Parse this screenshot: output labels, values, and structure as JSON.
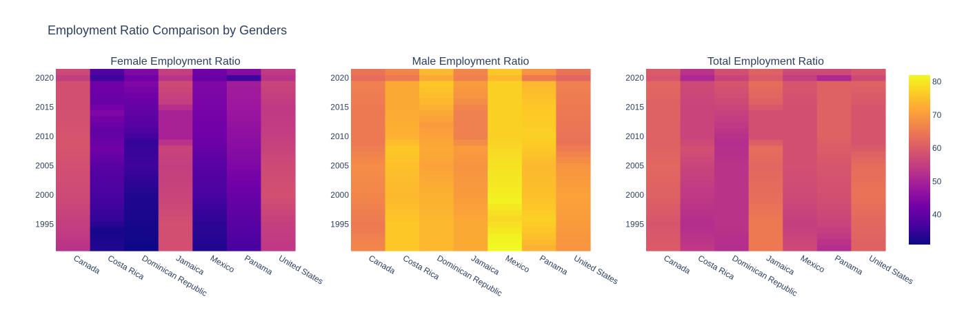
{
  "figure": {
    "title": "Employment Ratio Comparison by Genders"
  },
  "colorscale": {
    "name": "plasma",
    "stops": [
      "#0d0887",
      "#46039f",
      "#7201a8",
      "#9c179e",
      "#bd3786",
      "#d8576b",
      "#ed7953",
      "#fb9f3a",
      "#fdca26",
      "#f0f921"
    ],
    "zmin": 31,
    "zmax": 82,
    "ticks": [
      40,
      50,
      60,
      70,
      80
    ]
  },
  "chart_data": [
    {
      "type": "heatmap",
      "title": "Female Employment Ratio",
      "categories": [
        "Canada",
        "Costa Rica",
        "Dominican Republic",
        "Jamaica",
        "Mexico",
        "Panama",
        "United States"
      ],
      "y_ticks": [
        1995,
        2000,
        2005,
        2010,
        2015,
        2020
      ],
      "y_range": [
        1991,
        2021
      ],
      "series": [
        {
          "name": "Canada",
          "anchors": [
            [
              1991,
              53
            ],
            [
              1995,
              55
            ],
            [
              2000,
              57
            ],
            [
              2005,
              58
            ],
            [
              2009,
              59
            ],
            [
              2015,
              58
            ],
            [
              2019,
              58
            ],
            [
              2020,
              55
            ],
            [
              2021,
              57
            ]
          ]
        },
        {
          "name": "Costa Rica",
          "anchors": [
            [
              1991,
              33
            ],
            [
              1994,
              32
            ],
            [
              1996,
              35
            ],
            [
              2000,
              37
            ],
            [
              2005,
              39
            ],
            [
              2008,
              42
            ],
            [
              2011,
              40
            ],
            [
              2014,
              44
            ],
            [
              2016,
              41
            ],
            [
              2019,
              42
            ],
            [
              2020,
              36
            ],
            [
              2021,
              38
            ]
          ]
        },
        {
          "name": "Dominican Republic",
          "anchors": [
            [
              1991,
              31
            ],
            [
              1995,
              32
            ],
            [
              2000,
              33
            ],
            [
              2005,
              36
            ],
            [
              2009,
              35
            ],
            [
              2012,
              39
            ],
            [
              2016,
              41
            ],
            [
              2019,
              44
            ],
            [
              2020,
              42
            ],
            [
              2021,
              44
            ]
          ]
        },
        {
          "name": "Jamaica",
          "anchors": [
            [
              1991,
              58
            ],
            [
              1995,
              58
            ],
            [
              2000,
              56
            ],
            [
              2005,
              55
            ],
            [
              2008,
              56
            ],
            [
              2010,
              50
            ],
            [
              2014,
              50
            ],
            [
              2016,
              55
            ],
            [
              2019,
              57
            ],
            [
              2020,
              53
            ],
            [
              2021,
              55
            ]
          ]
        },
        {
          "name": "Mexico",
          "anchors": [
            [
              1991,
              33
            ],
            [
              1995,
              34
            ],
            [
              2000,
              37
            ],
            [
              2005,
              39
            ],
            [
              2010,
              42
            ],
            [
              2015,
              43
            ],
            [
              2019,
              44
            ],
            [
              2020,
              41
            ],
            [
              2021,
              42
            ]
          ]
        },
        {
          "name": "Panama",
          "anchors": [
            [
              1991,
              37
            ],
            [
              1995,
              39
            ],
            [
              2000,
              41
            ],
            [
              2005,
              44
            ],
            [
              2010,
              46
            ],
            [
              2015,
              48
            ],
            [
              2019,
              49
            ],
            [
              2020,
              36
            ],
            [
              2021,
              45
            ]
          ]
        },
        {
          "name": "United States",
          "anchors": [
            [
              1991,
              54
            ],
            [
              1995,
              55
            ],
            [
              2000,
              58
            ],
            [
              2005,
              57
            ],
            [
              2010,
              55
            ],
            [
              2015,
              54
            ],
            [
              2019,
              56
            ],
            [
              2020,
              53
            ],
            [
              2021,
              54
            ]
          ]
        }
      ]
    },
    {
      "type": "heatmap",
      "title": "Male Employment Ratio",
      "categories": [
        "Canada",
        "Costa Rica",
        "Dominican Republic",
        "Jamaica",
        "Mexico",
        "Panama",
        "United States"
      ],
      "y_ticks": [
        1995,
        2000,
        2005,
        2010,
        2015,
        2020
      ],
      "y_range": [
        1991,
        2021
      ],
      "series": [
        {
          "name": "Canada",
          "anchors": [
            [
              1991,
              67
            ],
            [
              1995,
              65
            ],
            [
              2000,
              67
            ],
            [
              2005,
              68
            ],
            [
              2009,
              65
            ],
            [
              2015,
              65
            ],
            [
              2019,
              66
            ],
            [
              2020,
              63
            ],
            [
              2021,
              64
            ]
          ]
        },
        {
          "name": "Costa Rica",
          "anchors": [
            [
              1991,
              76
            ],
            [
              1995,
              76
            ],
            [
              2000,
              74
            ],
            [
              2005,
              75
            ],
            [
              2008,
              76
            ],
            [
              2010,
              73
            ],
            [
              2015,
              72
            ],
            [
              2019,
              72
            ],
            [
              2020,
              65
            ],
            [
              2021,
              67
            ]
          ]
        },
        {
          "name": "Dominican Republic",
          "anchors": [
            [
              1991,
              74
            ],
            [
              1995,
              74
            ],
            [
              2000,
              73
            ],
            [
              2005,
              71
            ],
            [
              2008,
              72
            ],
            [
              2012,
              70
            ],
            [
              2016,
              74
            ],
            [
              2019,
              76
            ],
            [
              2020,
              72
            ],
            [
              2021,
              74
            ]
          ]
        },
        {
          "name": "Jamaica",
          "anchors": [
            [
              1991,
              72
            ],
            [
              1995,
              72
            ],
            [
              2000,
              70
            ],
            [
              2005,
              69
            ],
            [
              2008,
              70
            ],
            [
              2010,
              66
            ],
            [
              2014,
              66
            ],
            [
              2017,
              69
            ],
            [
              2019,
              70
            ],
            [
              2020,
              66
            ],
            [
              2021,
              67
            ]
          ]
        },
        {
          "name": "Mexico",
          "anchors": [
            [
              1991,
              82
            ],
            [
              1993,
              81
            ],
            [
              1996,
              78
            ],
            [
              1999,
              81
            ],
            [
              2002,
              80
            ],
            [
              2006,
              79
            ],
            [
              2010,
              77
            ],
            [
              2015,
              77
            ],
            [
              2019,
              77
            ],
            [
              2020,
              74
            ],
            [
              2021,
              76
            ]
          ]
        },
        {
          "name": "Panama",
          "anchors": [
            [
              1991,
              73
            ],
            [
              1993,
              75
            ],
            [
              1996,
              77
            ],
            [
              2000,
              75
            ],
            [
              2005,
              74
            ],
            [
              2008,
              76
            ],
            [
              2010,
              77
            ],
            [
              2015,
              76
            ],
            [
              2019,
              74
            ],
            [
              2020,
              65
            ],
            [
              2021,
              69
            ]
          ]
        },
        {
          "name": "United States",
          "anchors": [
            [
              1991,
              69
            ],
            [
              1995,
              70
            ],
            [
              2000,
              71
            ],
            [
              2005,
              69
            ],
            [
              2009,
              64
            ],
            [
              2015,
              65
            ],
            [
              2019,
              66
            ],
            [
              2020,
              62
            ],
            [
              2021,
              64
            ]
          ]
        }
      ]
    },
    {
      "type": "heatmap",
      "title": "Total Employment Ratio",
      "categories": [
        "Canada",
        "Costa Rica",
        "Dominican Republic",
        "Jamaica",
        "Mexico",
        "Panama",
        "United States"
      ],
      "y_ticks": [
        1995,
        2000,
        2005,
        2010,
        2015,
        2020
      ],
      "y_range": [
        1991,
        2021
      ],
      "series": [
        {
          "name": "Canada",
          "anchors": [
            [
              1991,
              60
            ],
            [
              1995,
              59
            ],
            [
              2000,
              61
            ],
            [
              2005,
              62
            ],
            [
              2009,
              61
            ],
            [
              2015,
              61
            ],
            [
              2019,
              62
            ],
            [
              2020,
              59
            ],
            [
              2021,
              60
            ]
          ]
        },
        {
          "name": "Costa Rica",
          "anchors": [
            [
              1991,
              54
            ],
            [
              1995,
              52
            ],
            [
              2000,
              54
            ],
            [
              2005,
              56
            ],
            [
              2008,
              58
            ],
            [
              2010,
              56
            ],
            [
              2015,
              56
            ],
            [
              2019,
              57
            ],
            [
              2020,
              51
            ],
            [
              2021,
              53
            ]
          ]
        },
        {
          "name": "Dominican Republic",
          "anchors": [
            [
              1991,
              52
            ],
            [
              1995,
              53
            ],
            [
              2000,
              53
            ],
            [
              2005,
              53
            ],
            [
              2009,
              52
            ],
            [
              2012,
              54
            ],
            [
              2016,
              57
            ],
            [
              2019,
              59
            ],
            [
              2020,
              56
            ],
            [
              2021,
              58
            ]
          ]
        },
        {
          "name": "Jamaica",
          "anchors": [
            [
              1991,
              65
            ],
            [
              1995,
              65
            ],
            [
              2000,
              63
            ],
            [
              2005,
              62
            ],
            [
              2008,
              63
            ],
            [
              2010,
              58
            ],
            [
              2014,
              58
            ],
            [
              2016,
              61
            ],
            [
              2019,
              63
            ],
            [
              2020,
              60
            ],
            [
              2021,
              61
            ]
          ]
        },
        {
          "name": "Mexico",
          "anchors": [
            [
              1991,
              57
            ],
            [
              1995,
              55
            ],
            [
              2000,
              57
            ],
            [
              2005,
              58
            ],
            [
              2010,
              58
            ],
            [
              2015,
              58
            ],
            [
              2019,
              59
            ],
            [
              2020,
              55
            ],
            [
              2021,
              57
            ]
          ]
        },
        {
          "name": "Panama",
          "anchors": [
            [
              1991,
              52
            ],
            [
              1995,
              56
            ],
            [
              2000,
              58
            ],
            [
              2005,
              59
            ],
            [
              2010,
              61
            ],
            [
              2015,
              61
            ],
            [
              2019,
              61
            ],
            [
              2020,
              51
            ],
            [
              2021,
              57
            ]
          ]
        },
        {
          "name": "United States",
          "anchors": [
            [
              1991,
              61
            ],
            [
              1995,
              62
            ],
            [
              2000,
              64
            ],
            [
              2005,
              63
            ],
            [
              2009,
              59
            ],
            [
              2015,
              59
            ],
            [
              2019,
              61
            ],
            [
              2020,
              57
            ],
            [
              2021,
              59
            ]
          ]
        }
      ]
    }
  ]
}
